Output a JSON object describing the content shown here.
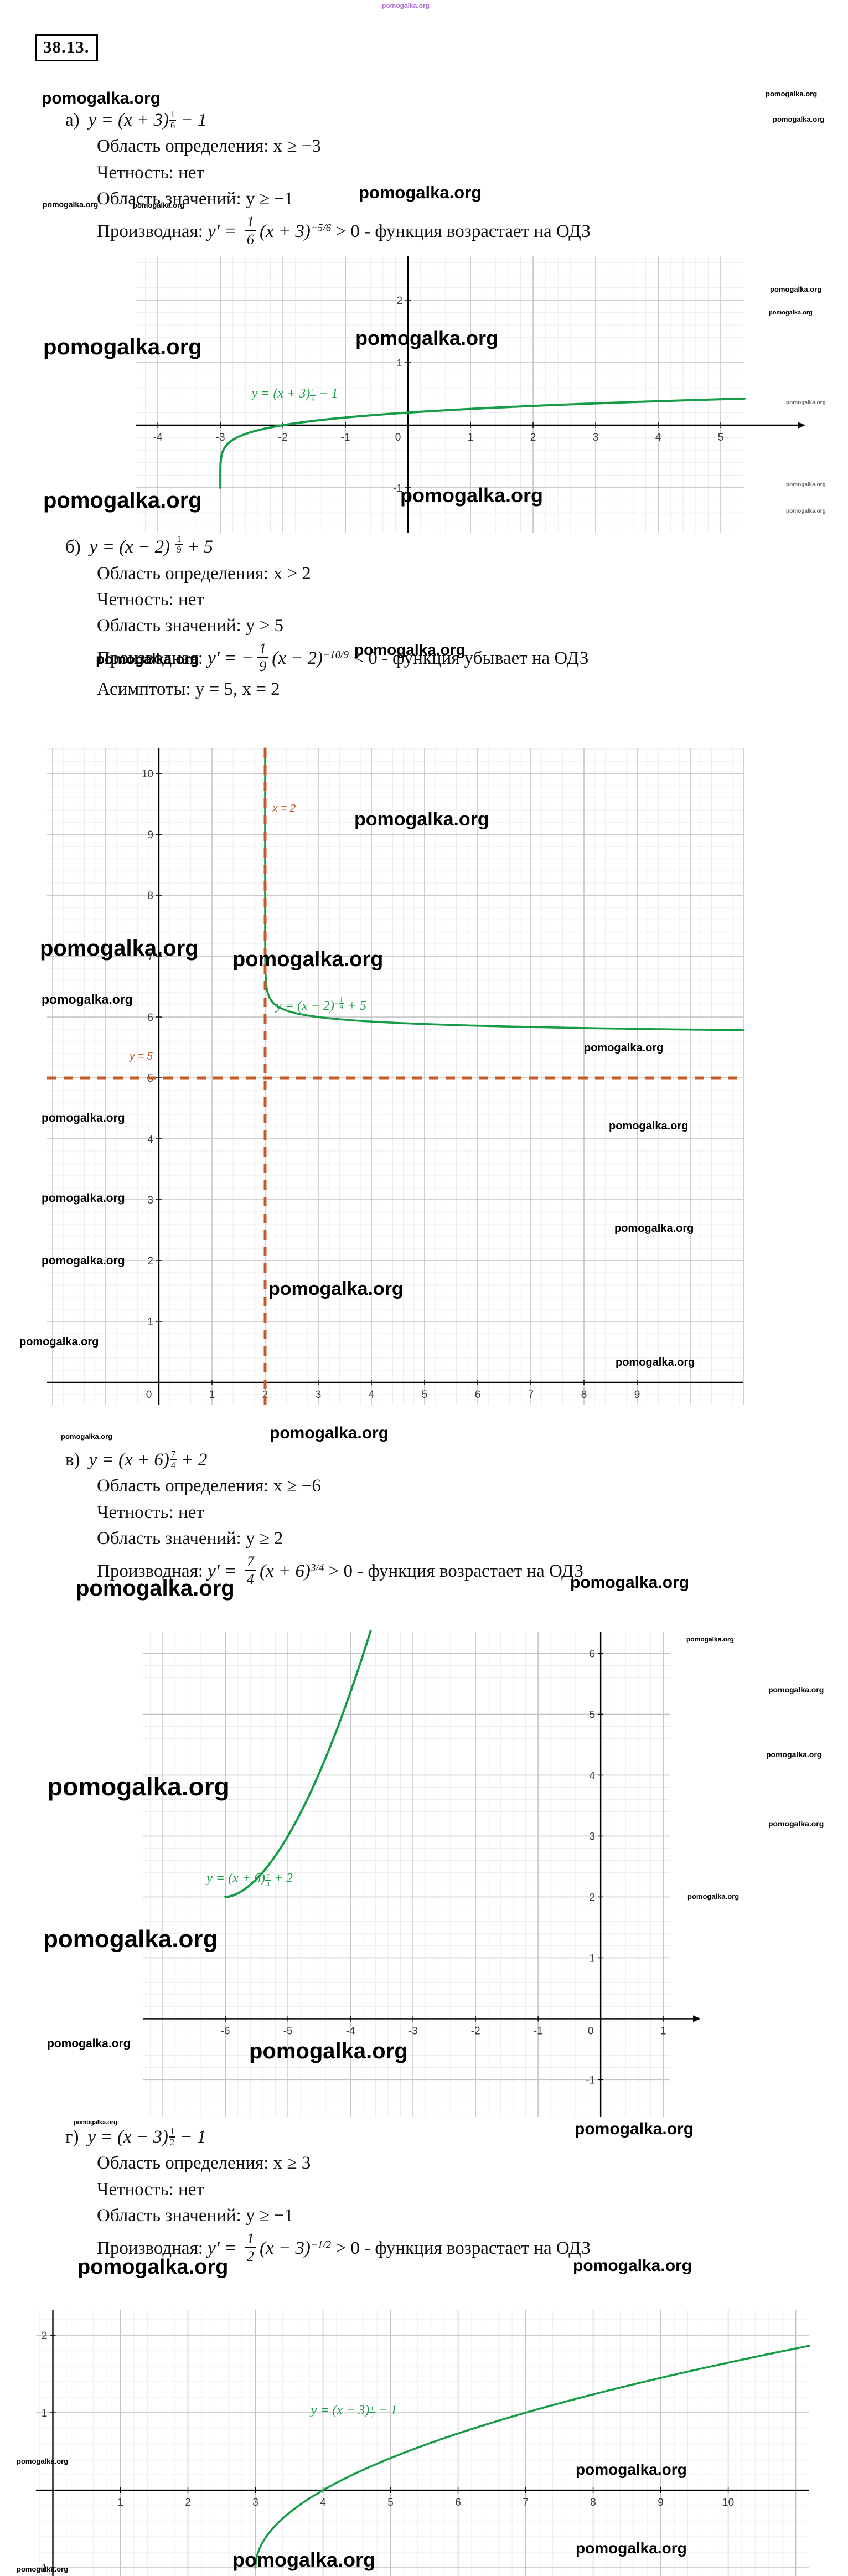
{
  "page": {
    "problem_number": "38.13.",
    "watermark": "pomogalka.org",
    "watermark_color": "#000000",
    "top_watermark_color": "#b06fd8"
  },
  "parts": [
    {
      "name": "а)",
      "formula": {
        "prefix": "y = (x + 3)",
        "exp_sign": "",
        "exp_num": "1",
        "exp_den": "6",
        "suffix": " − 1"
      },
      "domain": "Область определения: x ≥ −3",
      "parity": "Четность: нет",
      "range": "Область значений: y ≥ −1",
      "derivative": {
        "label": "Производная: ",
        "lead": "y′ = ",
        "num": "1",
        "den": "6",
        "base": "(x + 3)",
        "exp": "−5/6",
        "tail": " > 0 - функция возрастает на ОДЗ"
      },
      "asymptotes": ""
    },
    {
      "name": "б)",
      "formula": {
        "prefix": "y = (x − 2)",
        "exp_sign": "−",
        "exp_num": "1",
        "exp_den": "9",
        "suffix": " + 5"
      },
      "domain": "Область определения: x > 2",
      "parity": "Четность: нет",
      "range": "Область значений: y > 5",
      "derivative": {
        "label": "Производная: ",
        "lead": "y′ = −",
        "num": "1",
        "den": "9",
        "base": "(x − 2)",
        "exp": "−10/9",
        "tail": " < 0 - функция убывает на ОДЗ"
      },
      "asymptotes": "Асимптоты: y = 5, x = 2"
    },
    {
      "name": "в)",
      "formula": {
        "prefix": "y = (x + 6)",
        "exp_sign": "",
        "exp_num": "7",
        "exp_den": "4",
        "suffix": " + 2"
      },
      "domain": "Область определения: x ≥ −6",
      "parity": "Четность: нет",
      "range": "Область значений: y ≥ 2",
      "derivative": {
        "label": "Производная: ",
        "lead": "y′ = ",
        "num": "7",
        "den": "4",
        "base": "(x + 6)",
        "exp": "3/4",
        "tail": " > 0 - функция возрастает на ОДЗ"
      },
      "asymptotes": ""
    },
    {
      "name": "г)",
      "formula": {
        "prefix": "y = (x − 3)",
        "exp_sign": "",
        "exp_num": "1",
        "exp_den": "2",
        "suffix": " − 1"
      },
      "domain": "Область определения: x ≥ 3",
      "parity": "Четность: нет",
      "range": "Область значений: y ≥ −1",
      "derivative": {
        "label": "Производная: ",
        "lead": "y′ = ",
        "num": "1",
        "den": "2",
        "base": "(x − 3)",
        "exp": "−1/2",
        "tail": " > 0 - функция возрастает на ОДЗ"
      },
      "asymptotes": ""
    }
  ],
  "chart_data": [
    {
      "id": "graph-a",
      "type": "line",
      "equation_label": {
        "prefix": "y = (x + 3)",
        "exp_sign": "",
        "exp_num": "1",
        "exp_den": "6",
        "suffix": " − 1",
        "at": [
          -2.5,
          0.62
        ]
      },
      "function": {
        "form": "y = (x + a)^(p) + c",
        "a": 3,
        "p_num": 1,
        "p_den": 6,
        "c": -1,
        "domain": "x ≥ −3"
      },
      "x_range": [
        -4.355,
        5.38
      ],
      "y_range": [
        -1.726,
        2.708
      ],
      "x_ticks": [
        -4,
        -3,
        -2,
        -1,
        0,
        1,
        2,
        3,
        4,
        5
      ],
      "y_ticks": [
        -1,
        1,
        2
      ],
      "sample_points": [
        [
          -3,
          -1
        ],
        [
          -2,
          0
        ],
        [
          0,
          0.2
        ],
        [
          5,
          0.41
        ]
      ],
      "grid": {
        "minor_step": 0.2,
        "major_step": 1
      },
      "curve_color": "#169c46",
      "stroke_width": 4,
      "axis_overhang": 100,
      "asymptotes": []
    },
    {
      "id": "graph-b",
      "type": "line",
      "equation_label": {
        "prefix": "y = (x − 2)",
        "exp_sign": "−",
        "exp_num": "1",
        "exp_den": "9",
        "suffix": " + 5",
        "at": [
          2.2,
          6.35
        ]
      },
      "function": {
        "form": "y = (x + a)^(p) + c",
        "a": -2,
        "p_num": -1,
        "p_den": 9,
        "c": 5,
        "domain": "x > 2"
      },
      "x_range": [
        -2.104,
        11.0
      ],
      "y_range": [
        -0.373,
        10.41
      ],
      "x_ticks": [
        0,
        1,
        2,
        3,
        4,
        5,
        6,
        7,
        8,
        9
      ],
      "y_ticks": [
        1,
        2,
        3,
        4,
        5,
        6,
        7,
        8,
        9,
        10
      ],
      "sample_points": [
        [
          2.1,
          6.29
        ],
        [
          3,
          6
        ],
        [
          6,
          5.86
        ],
        [
          9,
          5.81
        ]
      ],
      "grid": {
        "minor_step": 0.2,
        "major_step": 1
      },
      "curve_color": "#169c46",
      "stroke_width": 3.6,
      "axis_overhang": 0,
      "asymptote_color": "#c75b28",
      "asymptotes": [
        {
          "orientation": "vertical",
          "value": 2,
          "label": "x = 2",
          "label_at": [
            2.14,
            9.52
          ]
        },
        {
          "orientation": "horizontal",
          "value": 5,
          "label": "y = 5",
          "label_at": [
            -0.55,
            5.45
          ]
        }
      ]
    },
    {
      "id": "graph-c",
      "type": "line",
      "equation_label": {
        "prefix": "y = (x + 6)",
        "exp_sign": "",
        "exp_num": "7",
        "exp_den": "4",
        "suffix": " + 2",
        "at": [
          -6.3,
          2.42
        ]
      },
      "function": {
        "form": "y = (x + a)^(p) + c",
        "a": 6,
        "p_num": 7,
        "p_den": 4,
        "c": 2,
        "domain": "x ≥ −6"
      },
      "x_range": [
        -7.32,
        1.105
      ],
      "y_range": [
        -1.615,
        6.35
      ],
      "x_ticks": [
        -6,
        -5,
        -4,
        -3,
        -2,
        -1,
        0,
        1
      ],
      "y_ticks": [
        -1,
        1,
        2,
        3,
        4,
        5,
        6
      ],
      "sample_points": [
        [
          -6,
          2
        ],
        [
          -5,
          3
        ],
        [
          -4,
          5.36
        ],
        [
          -3.68,
          6.35
        ]
      ],
      "grid": {
        "minor_step": 0.2,
        "major_step": 1
      },
      "curve_color": "#169c46",
      "stroke_width": 4,
      "axis_overhang": 46,
      "asymptotes": []
    },
    {
      "id": "graph-d",
      "type": "line",
      "equation_label": {
        "prefix": "y = (x − 3)",
        "exp_sign": "",
        "exp_num": "1",
        "exp_den": "2",
        "suffix": " − 1",
        "at": [
          3.82,
          1.12
        ]
      },
      "function": {
        "form": "y = (x + a)^(p) + c",
        "a": -3,
        "p_num": 1,
        "p_den": 2,
        "c": -1,
        "domain": "x ≥ 3"
      },
      "x_range": [
        -0.25,
        11.2
      ],
      "y_range": [
        -1.107,
        2.329
      ],
      "x_ticks": [
        1,
        2,
        3,
        4,
        5,
        6,
        7,
        8,
        9,
        10
      ],
      "y_ticks": [
        -1,
        1,
        2
      ],
      "sample_points": [
        [
          3,
          -1
        ],
        [
          4,
          0
        ],
        [
          7,
          1
        ],
        [
          10,
          1.65
        ]
      ],
      "grid": {
        "minor_step": 0.2,
        "major_step": 1
      },
      "curve_color": "#169c46",
      "stroke_width": 3.6,
      "axis_overhang": 0,
      "asymptotes": []
    }
  ]
}
